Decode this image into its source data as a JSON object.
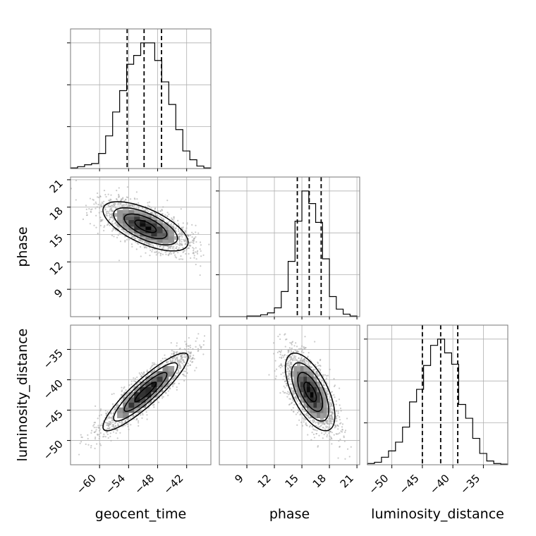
{
  "chart_data": {
    "type": "corner",
    "parameters": [
      "geocent_time",
      "phase",
      "luminosity_distance"
    ],
    "axis_labels": {
      "geocent_time": "geocent_time",
      "phase": "phase",
      "luminosity_distance": "luminosity_distance"
    },
    "ranges": {
      "geocent_time": [
        -66,
        -37
      ],
      "phase": [
        6,
        21.3
      ],
      "luminosity_distance": [
        -54,
        -31
      ]
    },
    "ticks": {
      "geocent_time": [
        -60,
        -54,
        -48,
        -42
      ],
      "phase": [
        9,
        12,
        15,
        18,
        21
      ],
      "luminosity_distance": [
        -50,
        -45,
        -40,
        -35
      ]
    },
    "tick_labels": {
      "geocent_time": [
        "−60",
        "−54",
        "−48",
        "−42"
      ],
      "phase": [
        "9",
        "12",
        "15",
        "18",
        "21"
      ],
      "luminosity_distance": [
        "−50",
        "−45",
        "−40",
        "−35"
      ]
    },
    "quantiles": {
      "geocent_time": [
        -54.3,
        -50.8,
        -47.2
      ],
      "phase": [
        14.5,
        15.8,
        17.1
      ],
      "luminosity_distance": [
        -45.0,
        -42.0,
        -39.2
      ]
    },
    "histograms": {
      "geocent_time": {
        "edges": [
          -66.0,
          -64.55,
          -63.1,
          -61.65,
          -60.2,
          -58.75,
          -57.3,
          -55.85,
          -54.4,
          -52.95,
          -51.5,
          -50.05,
          -48.6,
          -47.15,
          -45.7,
          -44.25,
          -42.8,
          -41.35,
          -39.9,
          -38.45,
          -37.0
        ],
        "counts": [
          0.5,
          1.5,
          3,
          4,
          12,
          26,
          45,
          62,
          83,
          90,
          100,
          100,
          86,
          69,
          51,
          31,
          14,
          7,
          2,
          0.5
        ]
      },
      "phase": {
        "edges": [
          6.0,
          6.75,
          7.5,
          8.25,
          9.0,
          9.75,
          10.5,
          11.25,
          12.0,
          12.75,
          13.5,
          14.25,
          15.0,
          15.75,
          16.5,
          17.25,
          18.0,
          18.75,
          19.5,
          20.25,
          21.0
        ],
        "counts": [
          0,
          0,
          0,
          0,
          0.5,
          0.5,
          1.5,
          3,
          7,
          20,
          44,
          76,
          100,
          90,
          75,
          46,
          16,
          6,
          2,
          0.5
        ]
      },
      "luminosity_distance": {
        "edges": [
          -54.0,
          -52.85,
          -51.7,
          -50.55,
          -49.4,
          -48.25,
          -47.1,
          -45.95,
          -44.8,
          -43.65,
          -42.5,
          -41.35,
          -40.2,
          -39.05,
          -37.9,
          -36.75,
          -35.6,
          -34.45,
          -33.3,
          -32.15,
          -31.0
        ],
        "counts": [
          1,
          2,
          6,
          11,
          18,
          30,
          50,
          60,
          79,
          95,
          100,
          89,
          80,
          48,
          37,
          21,
          9,
          3,
          1,
          0.5
        ]
      }
    },
    "pairs": [
      {
        "x": "geocent_time",
        "y": "phase",
        "mean": [
          -50.5,
          15.9
        ],
        "sigma": [
          4.4,
          1.35
        ],
        "rho": -0.65
      },
      {
        "x": "geocent_time",
        "y": "luminosity_distance",
        "mean": [
          -50.5,
          -42.0
        ],
        "sigma": [
          4.4,
          3.2
        ],
        "rho": 0.9
      },
      {
        "x": "phase",
        "y": "luminosity_distance",
        "mean": [
          15.9,
          -42.0
        ],
        "sigma": [
          1.35,
          3.2
        ],
        "rho": -0.62
      }
    ],
    "contour_levels_sigma": [
      0.5,
      1.0,
      1.5,
      2.0
    ],
    "grid": true,
    "colors": {
      "line": "#000000",
      "grid": "#b0b0b0",
      "frame": "#777777",
      "scatter": "#a8a8a8"
    }
  }
}
